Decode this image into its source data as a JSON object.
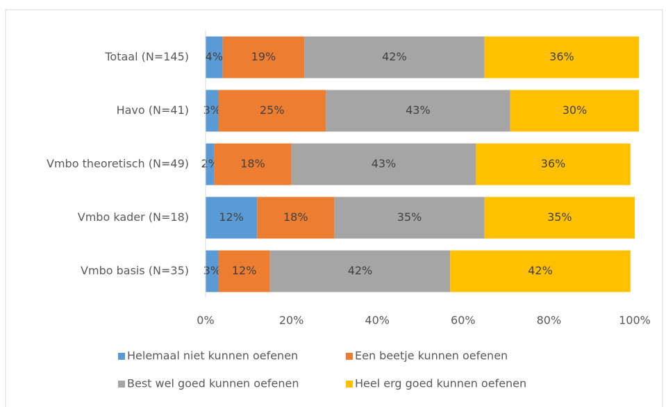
{
  "chart_data": {
    "type": "stacked_barh",
    "categories": [
      "Totaal (N=145)",
      "Havo (N=41)",
      "Vmbo theoretisch (N=49)",
      "Vmbo kader (N=18)",
      "Vmbo basis (N=35)"
    ],
    "series": [
      {
        "name": "Helemaal niet kunnen oefenen",
        "color": "#5b9bd5",
        "values": [
          4,
          3,
          2,
          12,
          3
        ],
        "value_labels": [
          "4%",
          "3%",
          "2%",
          "12%",
          "3%"
        ]
      },
      {
        "name": "Een beetje kunnen oefenen",
        "color": "#ed7d31",
        "values": [
          19,
          25,
          18,
          18,
          12
        ],
        "value_labels": [
          "19%",
          "25%",
          "18%",
          "18%",
          "12%"
        ]
      },
      {
        "name": "Best wel goed kunnen oefenen",
        "color": "#a5a5a5",
        "values": [
          42,
          43,
          43,
          35,
          42
        ],
        "value_labels": [
          "42%",
          "43%",
          "43%",
          "35%",
          "42%"
        ]
      },
      {
        "name": "Heel erg goed kunnen oefenen",
        "color": "#ffc000",
        "values": [
          36,
          30,
          36,
          35,
          42
        ],
        "value_labels": [
          "36%",
          "30%",
          "36%",
          "35%",
          "42%"
        ]
      }
    ],
    "xlim": [
      0,
      100
    ],
    "xticks": [
      {
        "value": 0,
        "label": "0%"
      },
      {
        "value": 20,
        "label": "20%"
      },
      {
        "value": 40,
        "label": "40%"
      },
      {
        "value": 60,
        "label": "60%"
      },
      {
        "value": 80,
        "label": "80%"
      },
      {
        "value": 100,
        "label": "100%"
      }
    ],
    "grid": false,
    "legend": "bottom"
  }
}
